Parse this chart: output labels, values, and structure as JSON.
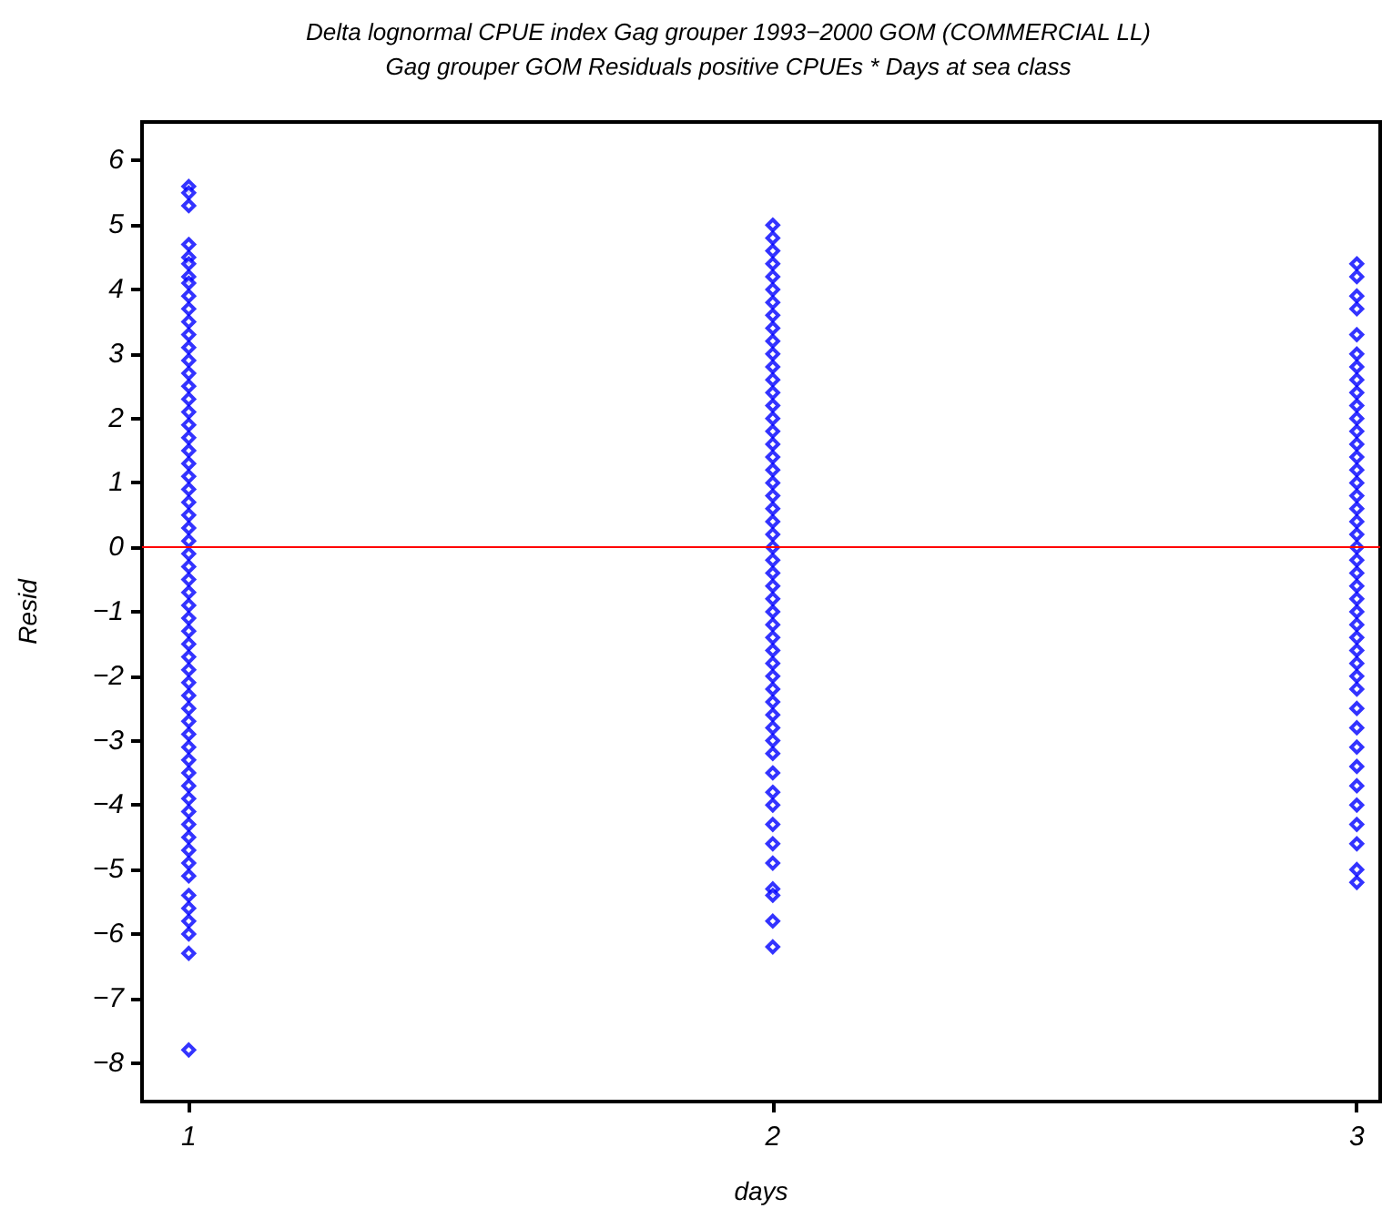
{
  "chart_data": {
    "type": "scatter",
    "title": "Delta lognormal CPUE index Gag grouper 1993−2000 GOM (COMMERCIAL LL)",
    "subtitle": "Gag grouper GOM Residuals positive CPUEs * Days at sea class",
    "xlabel": "days",
    "ylabel": "Resid",
    "marker": "diamond",
    "xlim": [
      0.92,
      3.04
    ],
    "xticks": [
      1,
      2,
      3
    ],
    "ylim": [
      -8.6,
      6.6
    ],
    "yticks": [
      -8,
      -7,
      -6,
      -5,
      -4,
      -3,
      -2,
      -1,
      0,
      1,
      2,
      3,
      4,
      5,
      6
    ],
    "ref_lines": [
      {
        "axis": "y",
        "value": 0,
        "color": "#ff0000"
      }
    ],
    "series": [
      {
        "color": "#0000ff",
        "x": [
          1,
          1,
          1,
          1,
          1,
          1,
          1,
          1,
          1,
          1,
          1,
          1,
          1,
          1,
          1,
          1,
          1,
          1,
          1,
          1,
          1,
          1,
          1,
          1,
          1,
          1,
          1,
          1,
          1,
          1,
          1,
          1,
          1,
          1,
          1,
          1,
          1,
          1,
          1,
          1,
          1,
          1,
          1,
          1,
          1,
          1,
          1,
          1,
          1,
          1,
          1,
          1,
          1,
          1,
          1,
          1,
          1,
          1,
          1,
          1
        ],
        "values": [
          5.6,
          5.5,
          5.3,
          4.7,
          4.5,
          4.4,
          4.2,
          4.1,
          3.9,
          3.7,
          3.5,
          3.3,
          3.1,
          2.9,
          2.7,
          2.5,
          2.3,
          2.1,
          1.9,
          1.7,
          1.5,
          1.3,
          1.1,
          0.9,
          0.7,
          0.5,
          0.3,
          0.1,
          -0.1,
          -0.3,
          -0.5,
          -0.7,
          -0.9,
          -1.1,
          -1.3,
          -1.5,
          -1.7,
          -1.9,
          -2.1,
          -2.3,
          -2.5,
          -2.7,
          -2.9,
          -3.1,
          -3.3,
          -3.5,
          -3.7,
          -3.9,
          -4.1,
          -4.3,
          -4.5,
          -4.7,
          -4.9,
          -5.1,
          -5.4,
          -5.6,
          -5.8,
          -6.0,
          -6.3,
          -7.8
        ]
      },
      {
        "color": "#0000ff",
        "x": [
          2,
          2,
          2,
          2,
          2,
          2,
          2,
          2,
          2,
          2,
          2,
          2,
          2,
          2,
          2,
          2,
          2,
          2,
          2,
          2,
          2,
          2,
          2,
          2,
          2,
          2,
          2,
          2,
          2,
          2,
          2,
          2,
          2,
          2,
          2,
          2,
          2,
          2,
          2,
          2,
          2,
          2,
          2,
          2,
          2,
          2,
          2,
          2,
          2,
          2,
          2,
          2
        ],
        "values": [
          5.0,
          4.8,
          4.6,
          4.4,
          4.2,
          4.0,
          3.8,
          3.6,
          3.4,
          3.2,
          3.0,
          2.8,
          2.6,
          2.4,
          2.2,
          2.0,
          1.8,
          1.6,
          1.4,
          1.2,
          1.0,
          0.8,
          0.6,
          0.4,
          0.2,
          0.0,
          -0.2,
          -0.4,
          -0.6,
          -0.8,
          -1.0,
          -1.2,
          -1.4,
          -1.6,
          -1.8,
          -2.0,
          -2.2,
          -2.4,
          -2.6,
          -2.8,
          -3.0,
          -3.2,
          -3.5,
          -3.8,
          -4.0,
          -4.3,
          -4.6,
          -4.9,
          -5.3,
          -5.4,
          -5.8,
          -6.2
        ]
      },
      {
        "color": "#0000ff",
        "x": [
          3,
          3,
          3,
          3,
          3,
          3,
          3,
          3,
          3,
          3,
          3,
          3,
          3,
          3,
          3,
          3,
          3,
          3,
          3,
          3,
          3,
          3,
          3,
          3,
          3,
          3,
          3,
          3,
          3,
          3,
          3,
          3,
          3,
          3,
          3,
          3,
          3,
          3,
          3,
          3,
          3,
          3
        ],
        "values": [
          4.4,
          4.2,
          3.9,
          3.7,
          3.3,
          3.0,
          2.8,
          2.6,
          2.4,
          2.2,
          2.0,
          1.8,
          1.6,
          1.4,
          1.2,
          1.0,
          0.8,
          0.6,
          0.4,
          0.2,
          0.0,
          -0.2,
          -0.4,
          -0.6,
          -0.8,
          -1.0,
          -1.2,
          -1.4,
          -1.6,
          -1.8,
          -2.0,
          -2.2,
          -2.5,
          -2.8,
          -3.1,
          -3.4,
          -3.7,
          -4.0,
          -4.3,
          -4.6,
          -5.0,
          -5.2
        ]
      }
    ]
  }
}
